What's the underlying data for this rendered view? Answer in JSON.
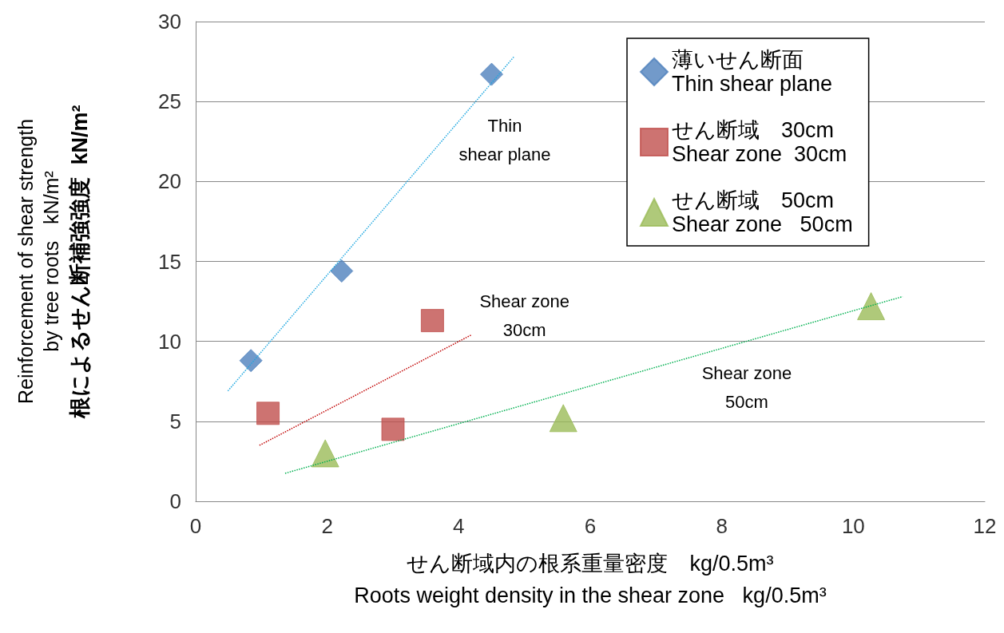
{
  "chart_data": {
    "type": "scatter",
    "xlabel": "せん断域内の根系重量密度　kg/0.5m³\nRoots weight density in the shear zone   kg/0.5m³",
    "ylabel": "Reinforcement of shear strength\nby tree roots   kN/m²\n根によるせん断補強強度  kN/m²",
    "xlim": [
      0,
      12
    ],
    "xticks": [
      0,
      2,
      4,
      6,
      8,
      10,
      12
    ],
    "ylim": [
      0,
      30
    ],
    "yticks": [
      0,
      5,
      10,
      15,
      20,
      25,
      30
    ],
    "grid": "y",
    "legend": "top right",
    "series": [
      {
        "name": "薄いせん断面\nThin shear plane",
        "color": "#4f81bd",
        "marker": "diamond",
        "x": [
          0.84,
          2.22,
          4.5
        ],
        "values": [
          8.8,
          14.4,
          26.7
        ]
      },
      {
        "name": "せん断域　30cm\nShear zone  30cm",
        "color": "#c0504d",
        "marker": "square",
        "x": [
          1.1,
          3.0,
          3.6
        ],
        "values": [
          5.5,
          4.5,
          11.3
        ]
      },
      {
        "name": "せん断域　50cm\nShear zone   50cm",
        "color": "#9bbb59",
        "marker": "triangle",
        "x": [
          1.97,
          5.59,
          10.27
        ],
        "values": [
          3.0,
          5.2,
          12.2
        ]
      },
      {
        "type": "line",
        "color": "#1ea7e0",
        "line_style": "dotted",
        "marker": "none",
        "x": [
          0.49,
          4.84
        ],
        "values": [
          6.9,
          27.8
        ]
      },
      {
        "type": "line",
        "color": "#c00000",
        "line_style": "dotted",
        "marker": "none",
        "x": [
          0.97,
          4.19
        ],
        "values": [
          3.5,
          10.4
        ]
      },
      {
        "type": "line",
        "color": "#00b050",
        "line_style": "dotted",
        "marker": "none",
        "x": [
          1.36,
          10.75
        ],
        "values": [
          1.75,
          12.8
        ]
      }
    ],
    "annotations": [
      "Thin\nshear plane",
      "Shear zone\n30cm",
      "Shear zone\n50cm"
    ]
  }
}
